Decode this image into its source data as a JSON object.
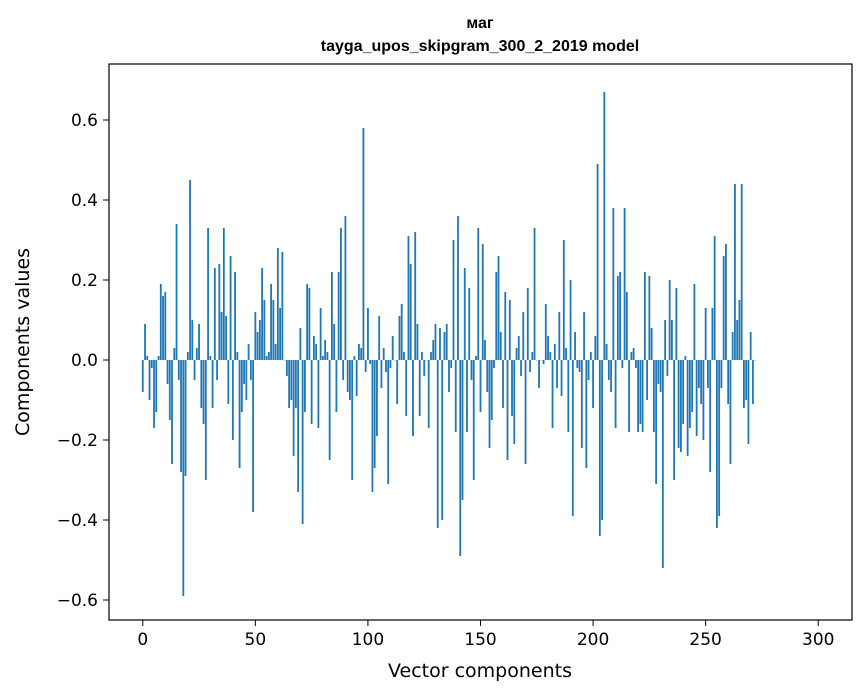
{
  "chart_data": {
    "type": "bar",
    "title_line1": "маг",
    "title_line2": "tayga_upos_skipgram_300_2_2019 model",
    "xlabel": "Vector components",
    "ylabel": "Components values",
    "xlim": [
      -15,
      315
    ],
    "ylim": [
      -0.65,
      0.74
    ],
    "x_ticks": [
      0,
      50,
      100,
      150,
      200,
      250,
      300
    ],
    "y_ticks": [
      -0.6,
      -0.4,
      -0.2,
      0.0,
      0.2,
      0.4,
      0.6
    ],
    "y_tick_labels": [
      "−0.6",
      "−0.4",
      "−0.2",
      "0.0",
      "0.2",
      "0.4",
      "0.6"
    ],
    "x_tick_labels": [
      "0",
      "50",
      "100",
      "150",
      "200",
      "250",
      "300"
    ],
    "grid": false,
    "bar_color": "#1f77b4",
    "values": [
      -0.08,
      0.09,
      0.01,
      -0.1,
      -0.02,
      -0.17,
      -0.13,
      0.01,
      0.19,
      0.16,
      0.17,
      -0.06,
      -0.15,
      -0.26,
      0.03,
      0.34,
      -0.05,
      -0.28,
      -0.59,
      -0.29,
      0.02,
      0.45,
      0.1,
      -0.05,
      0.03,
      0.09,
      -0.12,
      -0.16,
      -0.3,
      0.33,
      0.01,
      -0.12,
      0.23,
      -0.05,
      0.24,
      0.12,
      0.33,
      0.11,
      -0.11,
      0.26,
      -0.2,
      0.22,
      0.02,
      -0.27,
      -0.13,
      -0.06,
      -0.1,
      0.04,
      -0.05,
      -0.38,
      0.12,
      0.07,
      0.1,
      0.23,
      0.15,
      0.01,
      0.02,
      0.19,
      0.15,
      0.04,
      0.28,
      0.13,
      0.27,
      0.0,
      -0.04,
      -0.12,
      -0.1,
      -0.24,
      -0.12,
      -0.33,
      0.08,
      -0.41,
      -0.13,
      0.19,
      0.18,
      -0.16,
      0.06,
      0.04,
      -0.17,
      0.13,
      0.01,
      0.05,
      0.02,
      -0.25,
      0.22,
      0.09,
      -0.13,
      0.22,
      0.33,
      -0.05,
      0.36,
      -0.08,
      -0.1,
      -0.3,
      0.01,
      -0.09,
      0.04,
      0.03,
      0.58,
      -0.03,
      0.13,
      -0.01,
      -0.33,
      -0.27,
      -0.19,
      0.11,
      -0.07,
      0.03,
      -0.03,
      -0.31,
      -0.02,
      0.06,
      0.0,
      -0.11,
      0.11,
      0.14,
      0.02,
      -0.14,
      0.31,
      0.24,
      -0.19,
      0.32,
      0.09,
      -0.14,
      0.02,
      -0.04,
      0.0,
      -0.17,
      0.02,
      0.05,
      0.09,
      -0.42,
      0.08,
      -0.4,
      0.07,
      0.09,
      -0.08,
      -0.02,
      0.3,
      -0.18,
      0.36,
      -0.49,
      -0.35,
      0.23,
      -0.18,
      0.18,
      -0.05,
      -0.3,
      0.01,
      0.33,
      -0.13,
      0.29,
      0.05,
      -0.08,
      -0.22,
      -0.15,
      -0.02,
      0.22,
      0.26,
      0.07,
      -0.12,
      0.17,
      -0.25,
      0.15,
      -0.14,
      -0.21,
      0.03,
      0.06,
      -0.04,
      0.12,
      -0.26,
      0.18,
      -0.03,
      0.02,
      0.33,
      0.0,
      -0.07,
      0.0,
      -0.01,
      0.14,
      0.06,
      0.02,
      -0.17,
      0.04,
      -0.07,
      0.12,
      -0.09,
      0.3,
      0.03,
      -0.18,
      0.2,
      -0.39,
      0.07,
      -0.02,
      -0.03,
      -0.22,
      0.12,
      -0.27,
      -0.05,
      0.02,
      -0.12,
      0.06,
      0.49,
      -0.44,
      -0.4,
      0.67,
      0.04,
      -0.05,
      -0.08,
      0.38,
      -0.17,
      0.21,
      0.22,
      -0.02,
      0.38,
      0.17,
      -0.18,
      0.02,
      0.03,
      -0.02,
      -0.18,
      -0.16,
      -0.18,
      0.22,
      -0.1,
      0.21,
      0.08,
      -0.18,
      -0.31,
      -0.06,
      -0.08,
      -0.52,
      0.1,
      -0.04,
      0.2,
      0.1,
      -0.3,
      0.18,
      -0.22,
      -0.23,
      -0.16,
      0.01,
      -0.24,
      -0.17,
      -0.13,
      0.19,
      -0.19,
      -0.07,
      -0.11,
      -0.2,
      0.13,
      -0.07,
      -0.28,
      0.13,
      0.31,
      -0.42,
      -0.39,
      -0.07,
      0.26,
      0.29,
      -0.11,
      -0.26,
      0.07,
      0.44,
      0.1,
      0.15,
      0.44,
      -0.12,
      -0.1,
      -0.21,
      0.07,
      -0.11,
      0.0
    ]
  }
}
